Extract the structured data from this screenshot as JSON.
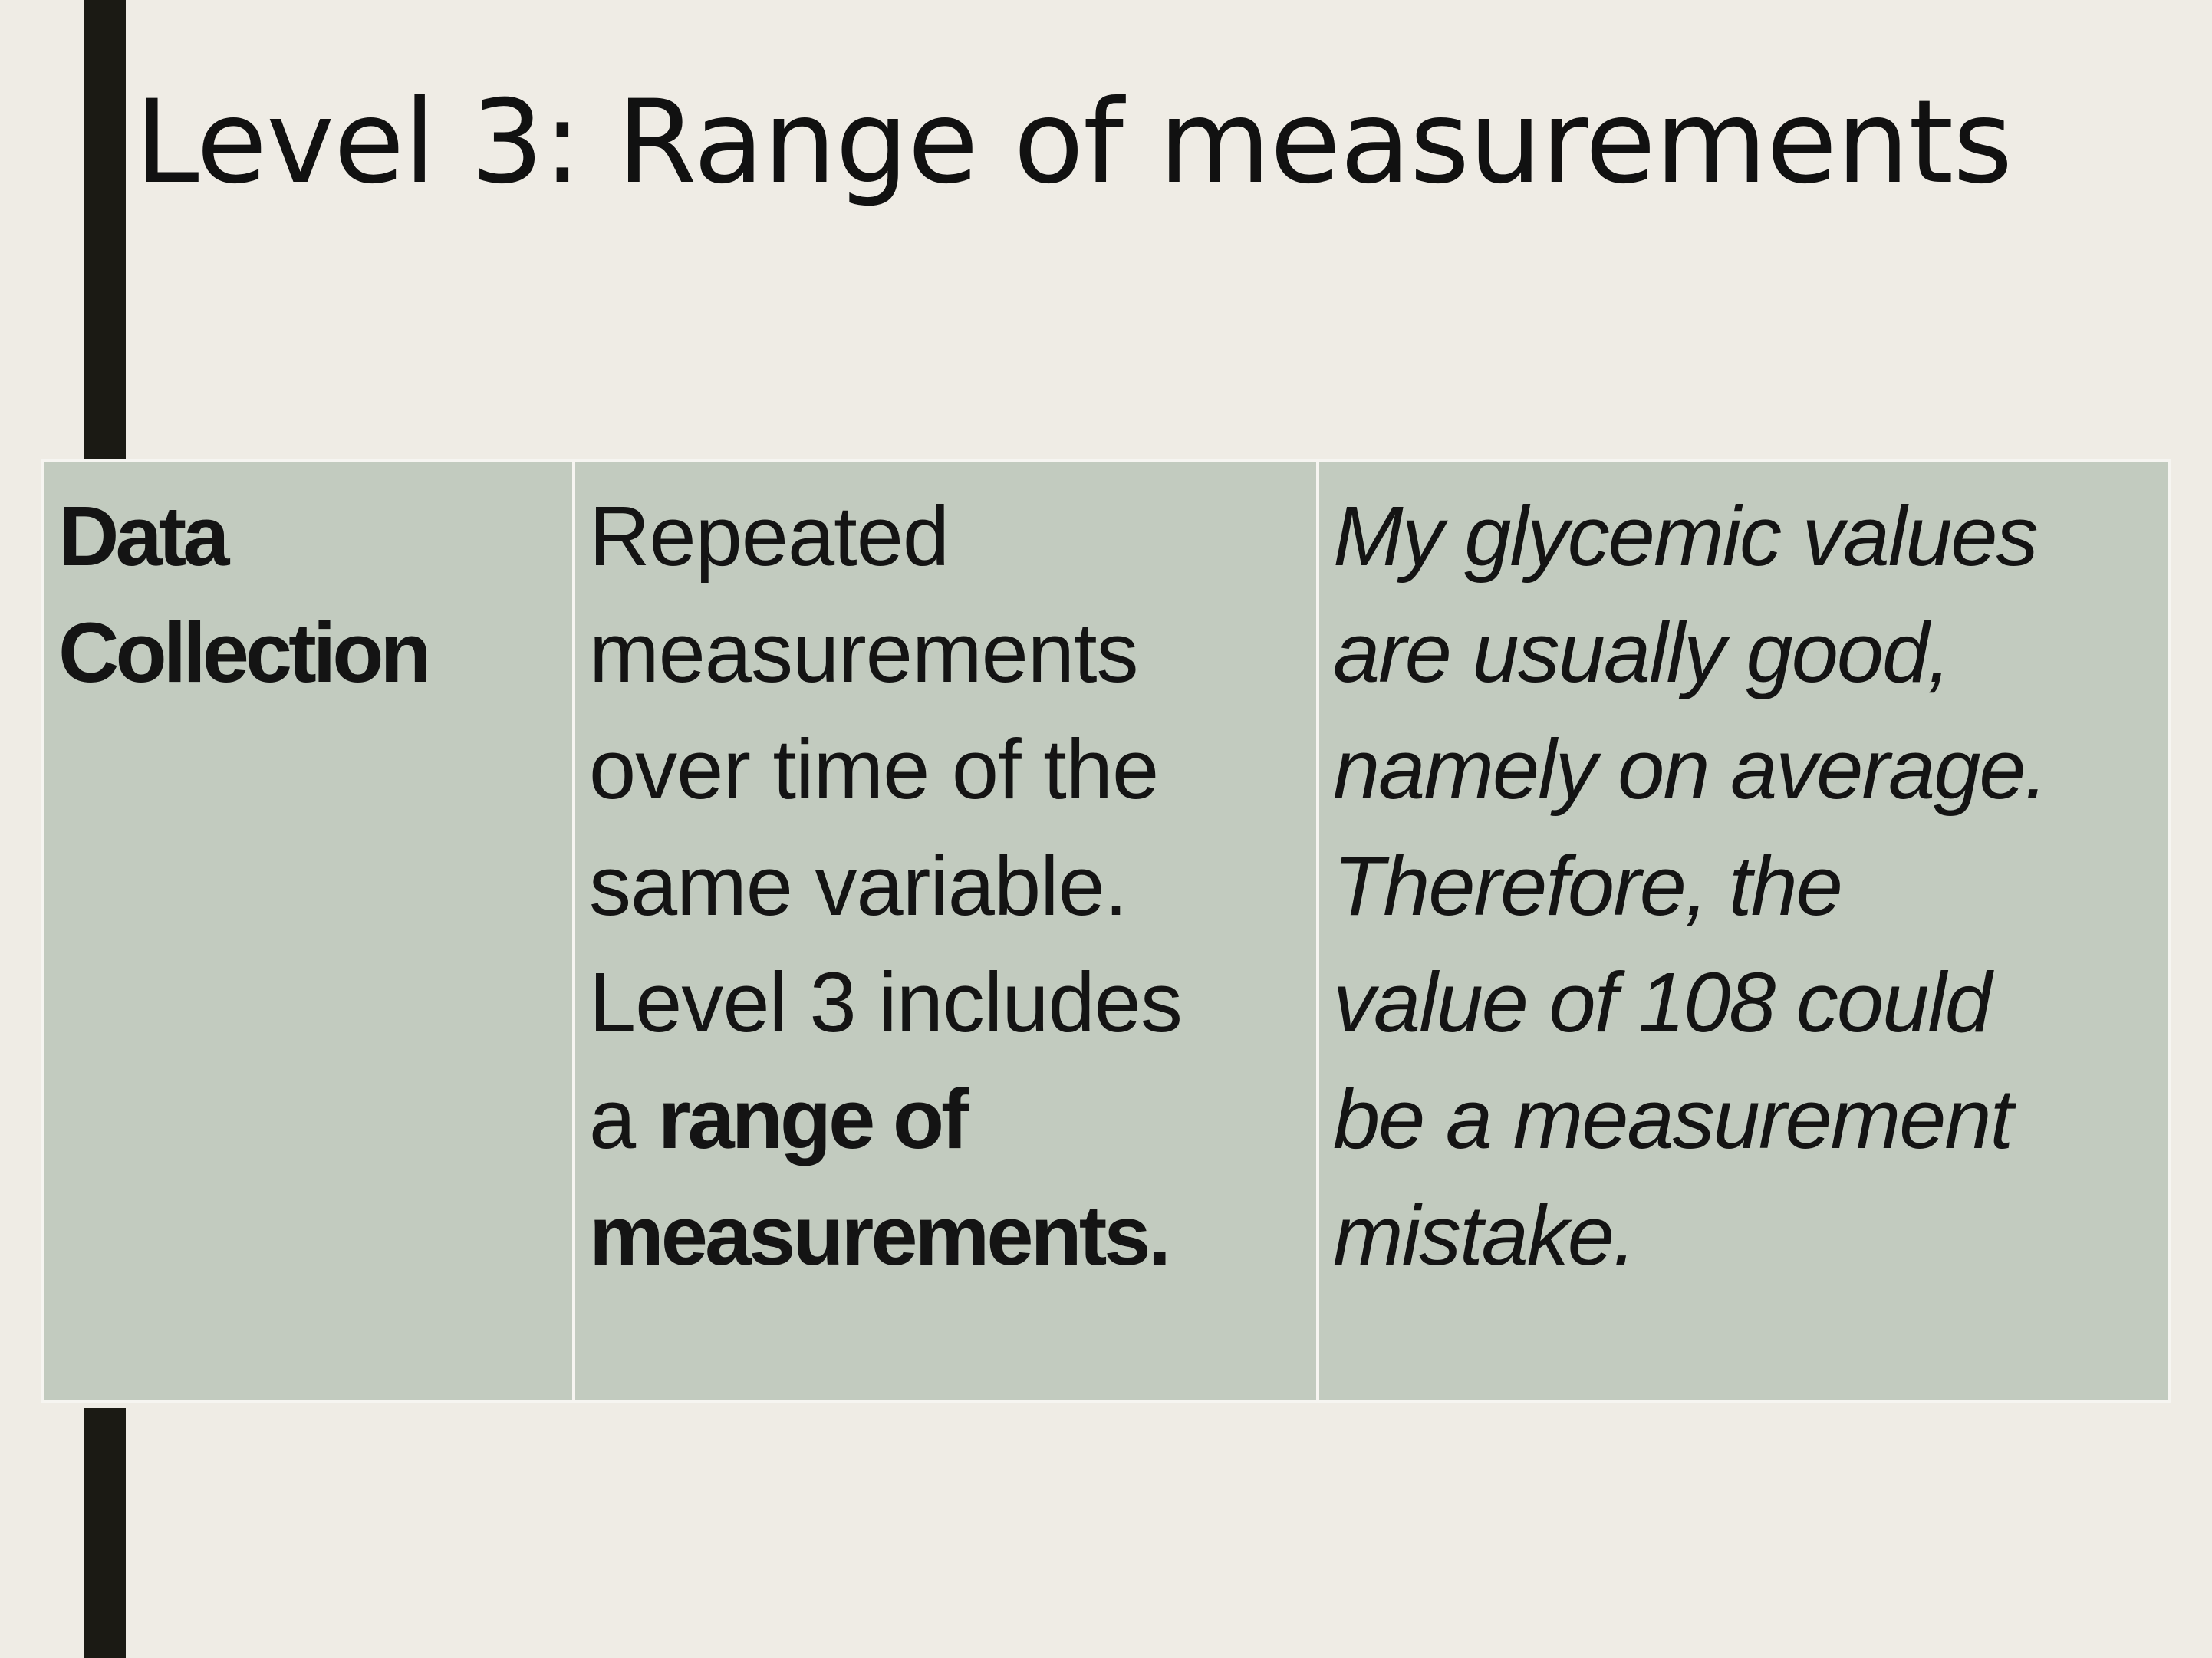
{
  "slide": {
    "title": "Level 3: Range of measurements"
  },
  "table": {
    "rows": [
      {
        "label_lines": [
          "Data",
          "Collection"
        ],
        "description": {
          "lines_plain": [
            "Repeated",
            "measurements",
            "over time of the",
            "same variable.",
            "Level 3 includes"
          ],
          "line6_prefix": "a ",
          "line6_bold": "range of",
          "line7_bold": "measurements."
        },
        "example_lines": [
          "My glycemic values",
          "are usually good,",
          "namely on average.",
          "Therefore, the",
          "value of 108 could",
          "be a measurement",
          "mistake."
        ]
      }
    ]
  }
}
